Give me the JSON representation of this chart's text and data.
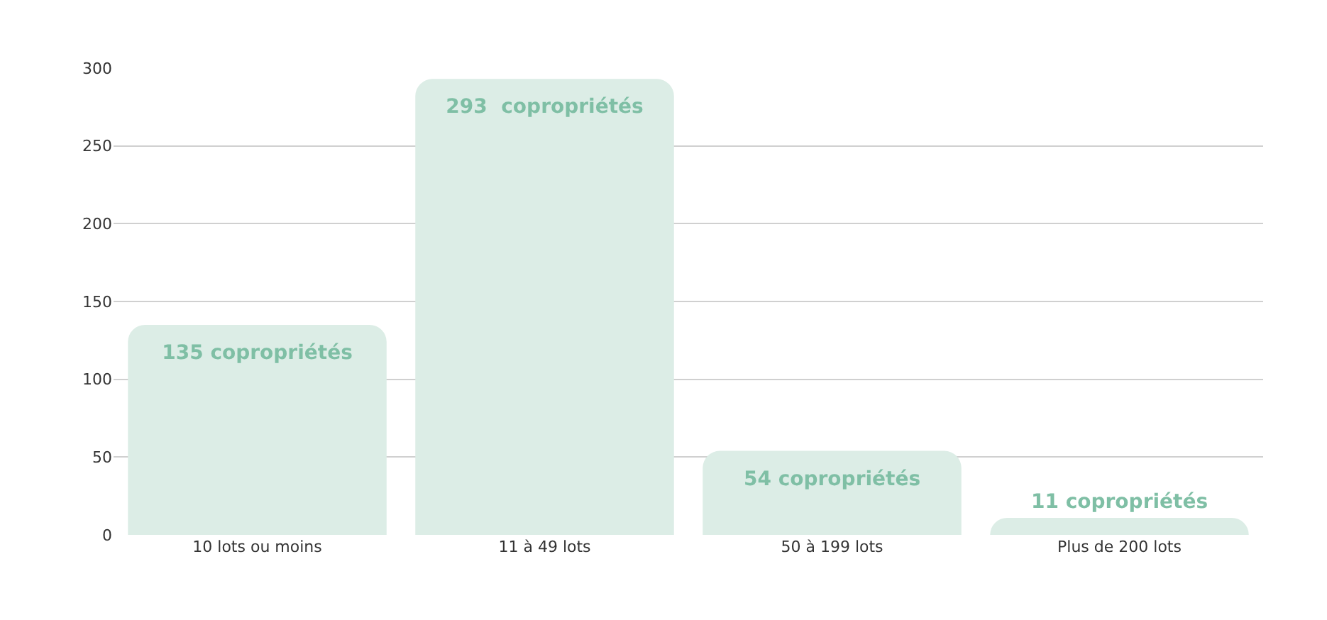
{
  "chart_data": {
    "type": "bar",
    "categories": [
      "10 lots ou moins",
      "11 à 49 lots",
      "50 à 199 lots",
      "Plus de 200 lots"
    ],
    "values": [
      135,
      293,
      54,
      11
    ],
    "value_labels": [
      "135 copropriétés",
      "293  copropriétés",
      "54 copropriétés",
      "11 copropriétés"
    ],
    "color": "#dcede6",
    "ylim": [
      0,
      300
    ],
    "yticks": [
      0,
      50,
      100,
      150,
      200,
      250,
      300
    ],
    "grid": "y",
    "legend": false
  }
}
